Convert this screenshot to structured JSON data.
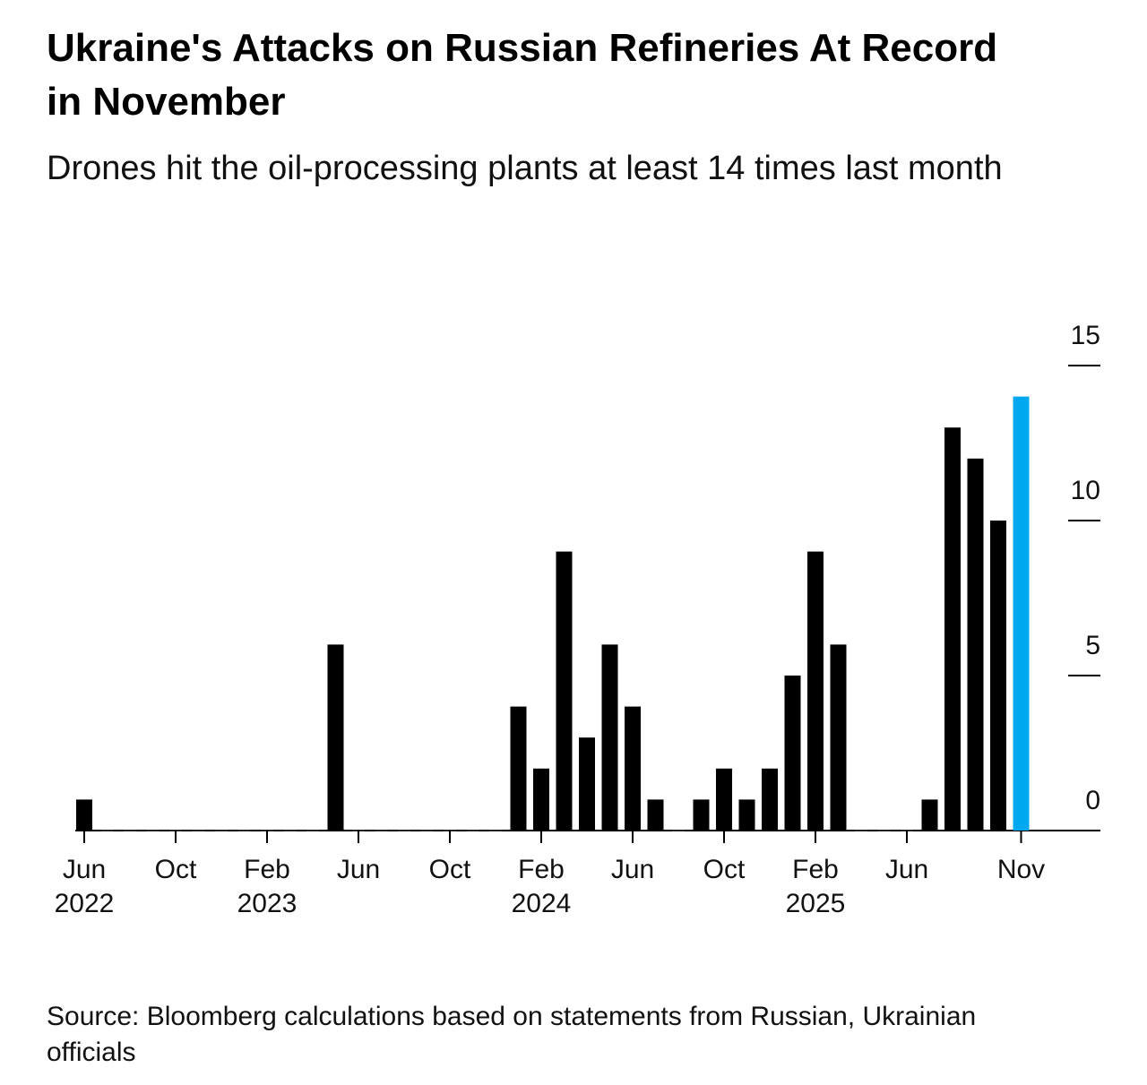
{
  "chart_data": {
    "type": "bar",
    "title": "Ukraine's Attacks on Russian Refineries At Record in November",
    "subtitle": "Drones hit the oil-processing plants at least 14 times last month",
    "source": "Source: Bloomberg calculations based on statements from Russian, Ukrainian officials",
    "categories": [
      "Jun 2022",
      null,
      null,
      null,
      "Oct",
      null,
      null,
      null,
      "Feb 2023",
      null,
      null,
      null,
      "Jun",
      null,
      null,
      null,
      "Oct",
      null,
      null,
      null,
      "Feb 2024",
      null,
      null,
      null,
      "Jun",
      null,
      null,
      null,
      "Oct",
      null,
      null,
      null,
      "Feb 2025",
      null,
      null,
      null,
      "Jun",
      null,
      null,
      null,
      null,
      "Nov"
    ],
    "values": [
      1,
      0,
      0,
      0,
      0,
      0,
      0,
      0,
      0,
      0,
      0,
      6,
      0,
      0,
      0,
      0,
      0,
      0,
      0,
      4,
      2,
      9,
      3,
      6,
      4,
      1,
      0,
      1,
      2,
      1,
      2,
      5,
      9,
      6,
      0,
      0,
      0,
      1,
      13,
      12,
      10,
      14
    ],
    "colors": [
      "#000000",
      "#000000",
      "#000000",
      "#000000",
      "#000000",
      "#000000",
      "#000000",
      "#000000",
      "#000000",
      "#000000",
      "#000000",
      "#000000",
      "#000000",
      "#000000",
      "#000000",
      "#000000",
      "#000000",
      "#000000",
      "#000000",
      "#000000",
      "#000000",
      "#000000",
      "#000000",
      "#000000",
      "#000000",
      "#000000",
      "#000000",
      "#000000",
      "#000000",
      "#000000",
      "#000000",
      "#000000",
      "#000000",
      "#000000",
      "#000000",
      "#000000",
      "#000000",
      "#000000",
      "#000000",
      "#000000",
      "#000000",
      "#00a8f0"
    ],
    "ylim": [
      0,
      15
    ],
    "yticks": [
      0,
      5,
      10,
      15
    ],
    "grid": false
  }
}
